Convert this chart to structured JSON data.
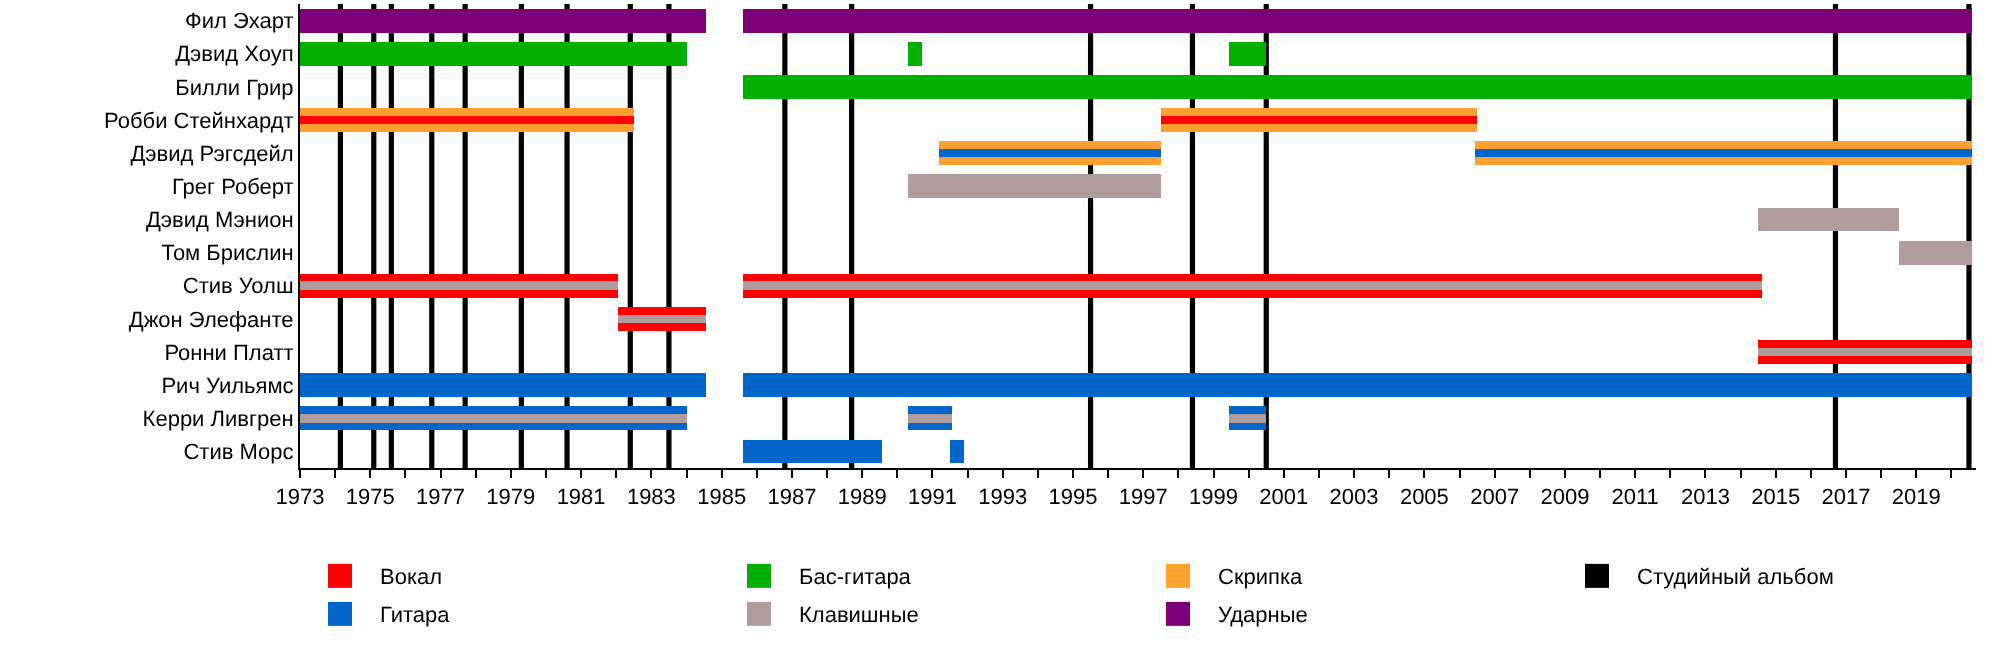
{
  "chart_data": {
    "type": "bar",
    "orientation": "horizontal",
    "legend": "bottom",
    "grid": false,
    "categories": [
      "Фил Эхарт",
      "Дэвид Хоуп",
      "Билли Грир",
      "Робби Стейнхардт",
      "Дэвид Рэгсдейл",
      "Грег Роберт",
      "Дэвид Мэнион",
      "Том Брислин",
      "Стив Уолш",
      "Джон Элефанте",
      "Ронни Платт",
      "Рич Уильямс",
      "Керри Ливгрен",
      "Стив Морс"
    ],
    "xlim": [
      1973,
      2020.7
    ],
    "xticks": [
      1973,
      {
        "value": 1974,
        "label": null
      },
      1975,
      {
        "value": 1976,
        "label": null
      },
      1977,
      {
        "value": 1978,
        "label": null
      },
      1979,
      {
        "value": 1980,
        "label": null
      },
      1981,
      {
        "value": 1982,
        "label": null
      },
      1983,
      {
        "value": 1984,
        "label": null
      },
      1985,
      {
        "value": 1986,
        "label": null
      },
      1987,
      {
        "value": 1988,
        "label": null
      },
      1989,
      {
        "value": 1990,
        "label": null
      },
      1991,
      {
        "value": 1992,
        "label": null
      },
      1993,
      {
        "value": 1994,
        "label": null
      },
      1995,
      {
        "value": 1996,
        "label": null
      },
      1997,
      {
        "value": 1998,
        "label": null
      },
      1999,
      {
        "value": 2000,
        "label": null
      },
      2001,
      {
        "value": 2002,
        "label": null
      },
      2003,
      {
        "value": 2004,
        "label": null
      },
      2005,
      {
        "value": 2006,
        "label": null
      },
      2007,
      {
        "value": 2008,
        "label": null
      },
      2009,
      {
        "value": 2010,
        "label": null
      },
      2011,
      {
        "value": 2012,
        "label": null
      },
      2013,
      {
        "value": 2014,
        "label": null
      },
      2015,
      {
        "value": 2016,
        "label": null
      },
      2017,
      {
        "value": 2018,
        "label": null
      },
      2019,
      {
        "value": 2020,
        "label": null
      }
    ],
    "series": [
      {
        "name": "Вокал",
        "color": "#ff0000",
        "base": [
          null,
          null,
          null,
          null,
          null,
          null,
          null,
          null,
          1973,
          1982.05,
          2014.5,
          null,
          null,
          null
        ],
        "values": [
          null,
          null,
          null,
          null,
          null,
          null,
          null,
          null,
          9.05,
          2.5,
          6.1,
          null,
          null,
          null
        ]
      },
      {
        "color": "#ff0000",
        "base": [
          null,
          null,
          null,
          null,
          null,
          null,
          null,
          null,
          1985.6,
          null,
          null,
          null,
          null,
          null
        ],
        "values": [
          null,
          null,
          null,
          null,
          null,
          null,
          null,
          null,
          29,
          null,
          null,
          null,
          null,
          null
        ]
      },
      {
        "name": "Бас-гитара",
        "color": "#00b000",
        "base": [
          null,
          1973,
          1985.6,
          null,
          null,
          null,
          null,
          null,
          null,
          null,
          null,
          null,
          null,
          null
        ],
        "values": [
          null,
          11,
          35,
          null,
          null,
          null,
          null,
          null,
          null,
          null,
          null,
          null,
          null,
          null
        ]
      },
      {
        "color": "#00b000",
        "base": [
          null,
          1990.3,
          null,
          null,
          null,
          null,
          null,
          null,
          null,
          null,
          null,
          null,
          null,
          null
        ],
        "values": [
          null,
          0.4,
          null,
          null,
          null,
          null,
          null,
          null,
          null,
          null,
          null,
          null,
          null,
          null
        ]
      },
      {
        "color": "#00b000",
        "base": [
          null,
          1999.45,
          null,
          null,
          null,
          null,
          null,
          null,
          null,
          null,
          null,
          null,
          null,
          null
        ],
        "values": [
          null,
          1.05,
          null,
          null,
          null,
          null,
          null,
          null,
          null,
          null,
          null,
          null,
          null,
          null
        ]
      },
      {
        "name": "Скрипка",
        "color": "#ffa030",
        "base": [
          null,
          null,
          null,
          1973,
          1991.2,
          null,
          null,
          null,
          null,
          null,
          null,
          null,
          null,
          null
        ],
        "values": [
          null,
          null,
          null,
          9.5,
          6.3,
          null,
          null,
          null,
          null,
          null,
          null,
          null,
          null,
          null
        ]
      },
      {
        "color": "#ffa030",
        "base": [
          null,
          null,
          null,
          1997.5,
          2006.45,
          null,
          null,
          null,
          null,
          null,
          null,
          null,
          null,
          null
        ],
        "values": [
          null,
          null,
          null,
          9,
          14.15,
          null,
          null,
          null,
          null,
          null,
          null,
          null,
          null,
          null
        ]
      },
      {
        "name": "Гитара",
        "color": "#0066cc",
        "base": [
          null,
          null,
          null,
          null,
          null,
          null,
          null,
          null,
          null,
          null,
          null,
          1973,
          1973,
          1985.6
        ],
        "values": [
          null,
          null,
          null,
          null,
          null,
          null,
          null,
          null,
          null,
          null,
          null,
          11.55,
          11,
          3.95
        ]
      },
      {
        "color": "#0066cc",
        "base": [
          null,
          null,
          null,
          null,
          null,
          null,
          null,
          null,
          null,
          null,
          null,
          1985.6,
          1990.3,
          1991.5
        ],
        "values": [
          null,
          null,
          null,
          null,
          null,
          null,
          null,
          null,
          null,
          null,
          null,
          35,
          1.25,
          0.4
        ]
      },
      {
        "color": "#0066cc",
        "base": [
          null,
          null,
          null,
          null,
          null,
          null,
          null,
          null,
          null,
          null,
          null,
          null,
          1999.45,
          null
        ],
        "values": [
          null,
          null,
          null,
          null,
          null,
          null,
          null,
          null,
          null,
          null,
          null,
          null,
          1.05,
          null
        ]
      },
      {
        "name": "Клавишные",
        "color": "#b09c9c",
        "base": [
          null,
          null,
          null,
          null,
          null,
          1990.3,
          2014.5,
          2018.5,
          null,
          null,
          null,
          null,
          null,
          null
        ],
        "values": [
          null,
          null,
          null,
          null,
          null,
          7.2,
          4,
          2.1,
          null,
          null,
          null,
          null,
          null,
          null
        ]
      },
      {
        "name": "Ударные",
        "color": "#7b0078",
        "base": [
          1973,
          null,
          null,
          null,
          null,
          null,
          null,
          null,
          null,
          null,
          null,
          null,
          null,
          null
        ],
        "values": [
          11.55,
          null,
          null,
          null,
          null,
          null,
          null,
          null,
          null,
          null,
          null,
          null,
          null,
          null
        ]
      },
      {
        "color": "#7b0078",
        "base": [
          1985.6,
          null,
          null,
          null,
          null,
          null,
          null,
          null,
          null,
          null,
          null,
          null,
          null,
          null
        ],
        "values": [
          35,
          null,
          null,
          null,
          null,
          null,
          null,
          null,
          null,
          null,
          null,
          null,
          null,
          null
        ]
      },
      {
        "color": "#ff0000",
        "base": [
          null,
          null,
          null,
          1973,
          null,
          null,
          null,
          null,
          null,
          null,
          null,
          null,
          null,
          null
        ],
        "values": [
          null,
          null,
          null,
          9.5,
          null,
          null,
          null,
          null,
          null,
          null,
          null,
          null,
          null,
          null
        ]
      },
      {
        "color": "#ff0000",
        "base": [
          null,
          null,
          null,
          1997.5,
          null,
          null,
          null,
          null,
          null,
          null,
          null,
          null,
          null,
          null
        ],
        "values": [
          null,
          null,
          null,
          9,
          null,
          null,
          null,
          null,
          null,
          null,
          null,
          null,
          null,
          null
        ]
      },
      {
        "color": "#0066cc",
        "base": [
          null,
          null,
          null,
          null,
          1991.2,
          null,
          null,
          null,
          null,
          null,
          null,
          null,
          null,
          null
        ],
        "values": [
          null,
          null,
          null,
          null,
          6.3,
          null,
          null,
          null,
          null,
          null,
          null,
          null,
          null,
          null
        ]
      },
      {
        "color": "#0066cc",
        "base": [
          null,
          null,
          null,
          null,
          2006.45,
          null,
          null,
          null,
          null,
          null,
          null,
          null,
          null,
          null
        ],
        "values": [
          null,
          null,
          null,
          null,
          14.15,
          null,
          null,
          null,
          null,
          null,
          null,
          null,
          null,
          null
        ]
      },
      {
        "color": "#b09c9c",
        "base": [
          null,
          null,
          null,
          null,
          null,
          null,
          null,
          null,
          1973,
          1982.05,
          2014.5,
          null,
          1973,
          null
        ],
        "values": [
          null,
          null,
          null,
          null,
          null,
          null,
          null,
          null,
          9.05,
          2.5,
          6.1,
          null,
          11,
          null
        ]
      },
      {
        "color": "#b09c9c",
        "base": [
          null,
          null,
          null,
          null,
          null,
          null,
          null,
          null,
          1985.6,
          null,
          null,
          null,
          1990.3,
          null
        ],
        "values": [
          null,
          null,
          null,
          null,
          null,
          null,
          null,
          null,
          29,
          null,
          null,
          null,
          1.25,
          null
        ]
      },
      {
        "color": "#b09c9c",
        "base": [
          null,
          null,
          null,
          null,
          null,
          null,
          null,
          null,
          null,
          null,
          null,
          null,
          1999.45,
          null
        ],
        "values": [
          null,
          null,
          null,
          null,
          null,
          null,
          null,
          null,
          null,
          null,
          null,
          null,
          1.05,
          null
        ]
      }
    ],
    "ref_lines": [
      {
        "axis": "x",
        "value": 1974.15,
        "color": "#000000",
        "label": "Студийный альбом"
      },
      {
        "axis": "x",
        "value": 1975.1,
        "color": "#000000"
      },
      {
        "axis": "x",
        "value": 1975.6,
        "color": "#000000"
      },
      {
        "axis": "x",
        "value": 1976.75,
        "color": "#000000"
      },
      {
        "axis": "x",
        "value": 1977.7,
        "color": "#000000"
      },
      {
        "axis": "x",
        "value": 1979.3,
        "color": "#000000"
      },
      {
        "axis": "x",
        "value": 1980.6,
        "color": "#000000"
      },
      {
        "axis": "x",
        "value": 1982.4,
        "color": "#000000"
      },
      {
        "axis": "x",
        "value": 1983.5,
        "color": "#000000"
      },
      {
        "axis": "x",
        "value": 1986.8,
        "color": "#000000"
      },
      {
        "axis": "x",
        "value": 1988.7,
        "color": "#000000"
      },
      {
        "axis": "x",
        "value": 1995.5,
        "color": "#000000"
      },
      {
        "axis": "x",
        "value": 1998.4,
        "color": "#000000"
      },
      {
        "axis": "x",
        "value": 2000.5,
        "color": "#000000"
      },
      {
        "axis": "x",
        "value": 2016.7,
        "color": "#000000"
      },
      {
        "axis": "x",
        "value": 2020.5,
        "color": "#000000"
      }
    ]
  }
}
